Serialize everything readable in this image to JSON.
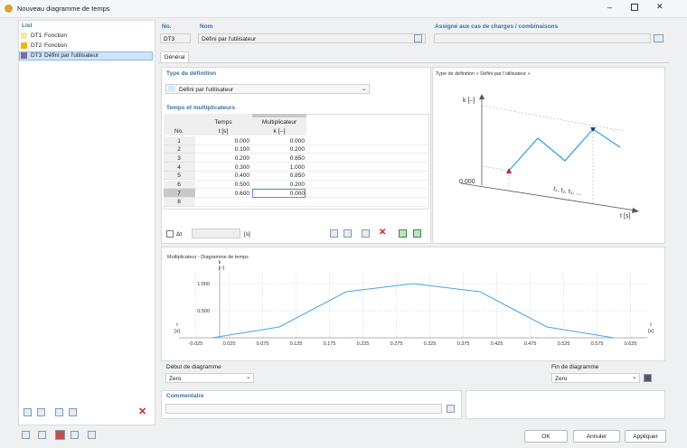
{
  "window": {
    "title": "Nouveau diagramme de temps"
  },
  "list": {
    "title": "List",
    "items": [
      {
        "id": "DT1",
        "name": "Fonction",
        "color": "#f3e7a6"
      },
      {
        "id": "DT2",
        "name": "Fonction",
        "color": "#f2b21c"
      },
      {
        "id": "DT3",
        "name": "Défini par l'utilisateur",
        "color": "#7d6c9e"
      }
    ]
  },
  "header": {
    "no_label": "No.",
    "no": "DT3",
    "name_label": "Nom",
    "name": "Défini par l'utilisateur",
    "assigned_label": "Assigné aux cas de charges / combinaisons"
  },
  "tabs": [
    "Général"
  ],
  "definition": {
    "title": "Type de définition",
    "value": "Défini par l'utilisateur"
  },
  "table": {
    "title": "Temps et multiplicateurs",
    "header_top": [
      "Temps",
      "Multiplicateur"
    ],
    "header_bottom": [
      "No.",
      "t [s]",
      "k [--]"
    ],
    "rows": [
      [
        "1",
        "0.000",
        "0.000"
      ],
      [
        "2",
        "0.100",
        "0.200"
      ],
      [
        "3",
        "0.200",
        "0.850"
      ],
      [
        "4",
        "0.300",
        "1.000"
      ],
      [
        "5",
        "0.400",
        "0.850"
      ],
      [
        "6",
        "0.500",
        "0.200"
      ],
      [
        "7",
        "0.600",
        "0.000"
      ],
      [
        "8"
      ]
    ]
  },
  "delta": {
    "label": "Δt",
    "unit": "[s]"
  },
  "illustration": {
    "title": "Type de définition « Défini par l'utilisateur »",
    "k_label": "k [–]",
    "origin": "0.000",
    "t_points": "t₁, t₂, t₃, ...",
    "t_label": "t [s]"
  },
  "time_diagram": {
    "type": "line",
    "title": "Multiplicateur - Diagramme de temps",
    "y_label": "k",
    "y_unit": "[--]",
    "x_label": "t",
    "x_unit": "[s]",
    "x": [
      0,
      0.1,
      0.2,
      0.3,
      0.4,
      0.5,
      0.6
    ],
    "values": [
      0,
      0.2,
      0.85,
      1,
      0.85,
      0.2,
      0
    ],
    "color": "#4aa3e6",
    "xlim": [
      -0.05,
      0.65
    ],
    "ylim": [
      0,
      1.2
    ],
    "xticks": [
      -0.025,
      0.025,
      0.075,
      0.125,
      0.175,
      0.225,
      0.275,
      0.325,
      0.375,
      0.425,
      0.475,
      0.525,
      0.575,
      0.625
    ],
    "yticks": [
      {
        "value": 0.5,
        "label": "0.500"
      },
      {
        "value": 1,
        "label": "1.000"
      }
    ],
    "grid": true
  },
  "start": {
    "label": "Début de diagramme",
    "value": "Zero"
  },
  "end": {
    "label": "Fin de diagramme",
    "value": "Zero"
  },
  "comment": {
    "label": "Commentaire"
  },
  "buttons": [
    "OK",
    "Annuler",
    "Appliquer"
  ]
}
